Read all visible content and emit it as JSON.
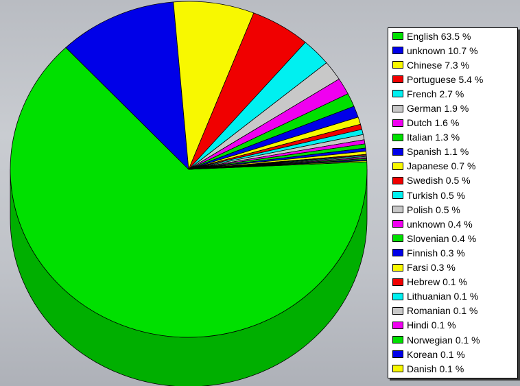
{
  "chart_data": {
    "type": "pie",
    "style": "3d",
    "legend_position": "right",
    "slices": [
      {
        "label": "English",
        "value": 63.5,
        "display": "English 63.5 %",
        "color": "#00e000"
      },
      {
        "label": "unknown",
        "value": 10.7,
        "display": "unknown 10.7 %",
        "color": "#0000e8"
      },
      {
        "label": "Chinese",
        "value": 7.3,
        "display": "Chinese 7.3 %",
        "color": "#f8f800"
      },
      {
        "label": "Portuguese",
        "value": 5.4,
        "display": "Portuguese 5.4 %",
        "color": "#f00000"
      },
      {
        "label": "French",
        "value": 2.7,
        "display": "French 2.7 %",
        "color": "#00f0f0"
      },
      {
        "label": "German",
        "value": 1.9,
        "display": "German 1.9 %",
        "color": "#c8c8c8"
      },
      {
        "label": "Dutch",
        "value": 1.6,
        "display": "Dutch 1.6 %",
        "color": "#f000f0"
      },
      {
        "label": "Italian",
        "value": 1.3,
        "display": "Italian 1.3 %",
        "color": "#00e000"
      },
      {
        "label": "Spanish",
        "value": 1.1,
        "display": "Spanish 1.1 %",
        "color": "#0000e8"
      },
      {
        "label": "Japanese",
        "value": 0.7,
        "display": "Japanese 0.7 %",
        "color": "#f8f800"
      },
      {
        "label": "Swedish",
        "value": 0.5,
        "display": "Swedish 0.5 %",
        "color": "#f00000"
      },
      {
        "label": "Turkish",
        "value": 0.5,
        "display": "Turkish 0.5 %",
        "color": "#00f0f0"
      },
      {
        "label": "Polish",
        "value": 0.5,
        "display": "Polish 0.5 %",
        "color": "#c8c8c8"
      },
      {
        "label": "unknown",
        "value": 0.4,
        "display": "unknown 0.4 %",
        "color": "#f000f0"
      },
      {
        "label": "Slovenian",
        "value": 0.4,
        "display": "Slovenian 0.4 %",
        "color": "#00e000"
      },
      {
        "label": "Finnish",
        "value": 0.3,
        "display": "Finnish 0.3 %",
        "color": "#0000e8"
      },
      {
        "label": "Farsi",
        "value": 0.3,
        "display": "Farsi 0.3 %",
        "color": "#f8f800"
      },
      {
        "label": "Hebrew",
        "value": 0.1,
        "display": "Hebrew 0.1 %",
        "color": "#f00000"
      },
      {
        "label": "Lithuanian",
        "value": 0.1,
        "display": "Lithuanian 0.1 %",
        "color": "#00f0f0"
      },
      {
        "label": "Romanian",
        "value": 0.1,
        "display": "Romanian 0.1 %",
        "color": "#c8c8c8"
      },
      {
        "label": "Hindi",
        "value": 0.1,
        "display": "Hindi 0.1 %",
        "color": "#f000f0"
      },
      {
        "label": "Norwegian",
        "value": 0.1,
        "display": "Norwegian 0.1 %",
        "color": "#00e000"
      },
      {
        "label": "Korean",
        "value": 0.1,
        "display": "Korean 0.1 %",
        "color": "#0000e8"
      },
      {
        "label": "Danish",
        "value": 0.1,
        "display": "Danish 0.1 %",
        "color": "#f8f800"
      }
    ]
  }
}
